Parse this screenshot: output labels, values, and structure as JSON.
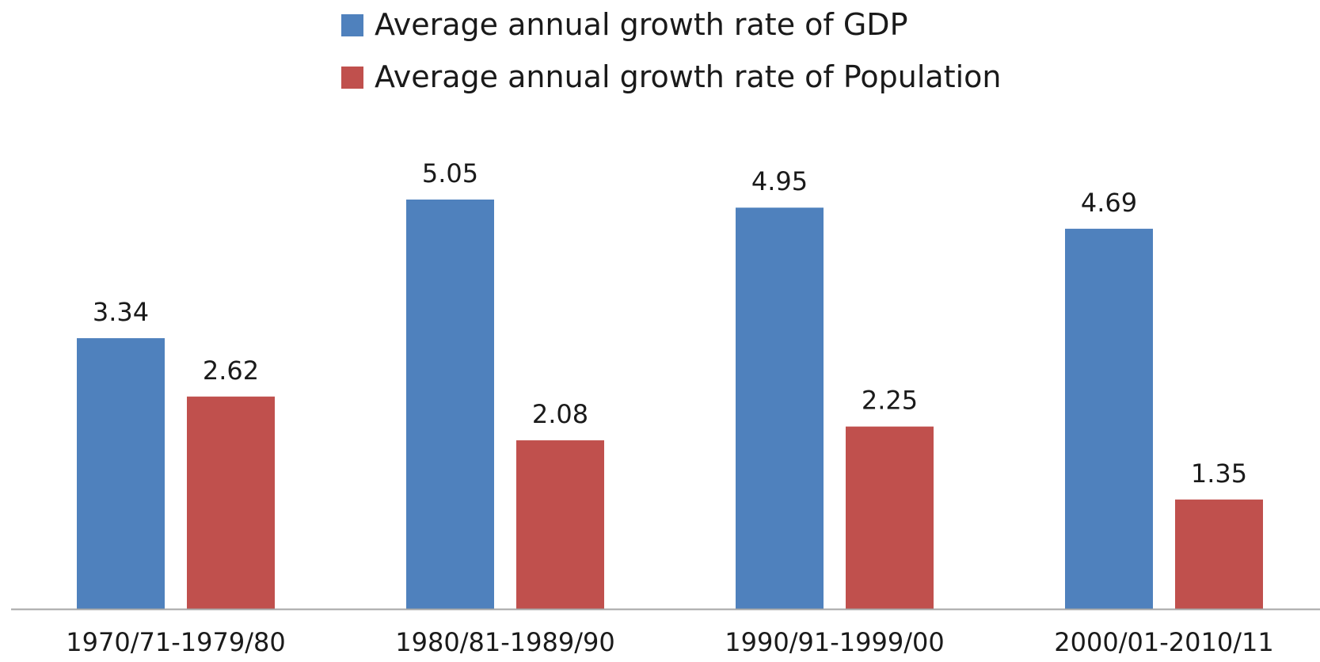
{
  "chart_data": {
    "type": "bar",
    "categories": [
      "1970/71-1979/80",
      "1980/81-1989/90",
      "1990/91-1999/00",
      "2000/01-2010/11"
    ],
    "series": [
      {
        "name": "Average annual growth rate of GDP",
        "values": [
          3.34,
          5.05,
          4.95,
          4.69
        ],
        "labels": [
          "3.34",
          "5.05",
          "4.95",
          "4.69"
        ],
        "color": "#4f81bd"
      },
      {
        "name": "Average annual growth rate of Population",
        "values": [
          2.62,
          2.08,
          2.25,
          1.35
        ],
        "labels": [
          "2.62",
          "2.08",
          "2.25",
          "1.35"
        ],
        "color": "#c0504d"
      }
    ],
    "ylim": [
      0,
      5.05
    ],
    "grid": false,
    "y_axis_visible": false,
    "legend_position": "top-center",
    "axis_color": "#a6a6a6"
  }
}
